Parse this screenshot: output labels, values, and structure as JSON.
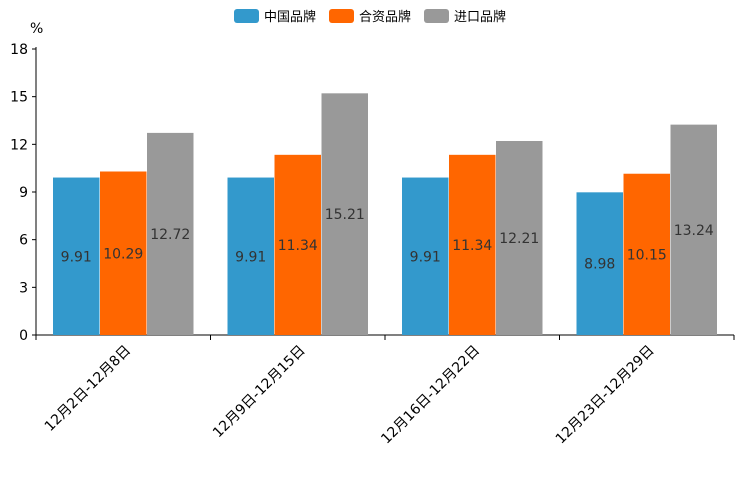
{
  "chart_data": {
    "type": "bar",
    "title": "",
    "ylabel": "%",
    "xlabel": "",
    "ylim": [
      0,
      18
    ],
    "yticks": [
      0,
      3,
      6,
      9,
      12,
      15,
      18
    ],
    "categories": [
      "12月2日-12月8日",
      "12月9日-12月15日",
      "12月16日-12月22日",
      "12月23日-12月29日"
    ],
    "series": [
      {
        "name": "中国品牌",
        "color": "#3399cc",
        "values": [
          9.91,
          9.91,
          9.91,
          8.98
        ]
      },
      {
        "name": "合资品牌",
        "color": "#ff6600",
        "values": [
          10.29,
          11.34,
          11.34,
          10.15
        ]
      },
      {
        "name": "进口品牌",
        "color": "#999999",
        "values": [
          12.72,
          15.21,
          12.21,
          13.24
        ]
      }
    ],
    "legend_position": "top-center",
    "grid": false
  }
}
